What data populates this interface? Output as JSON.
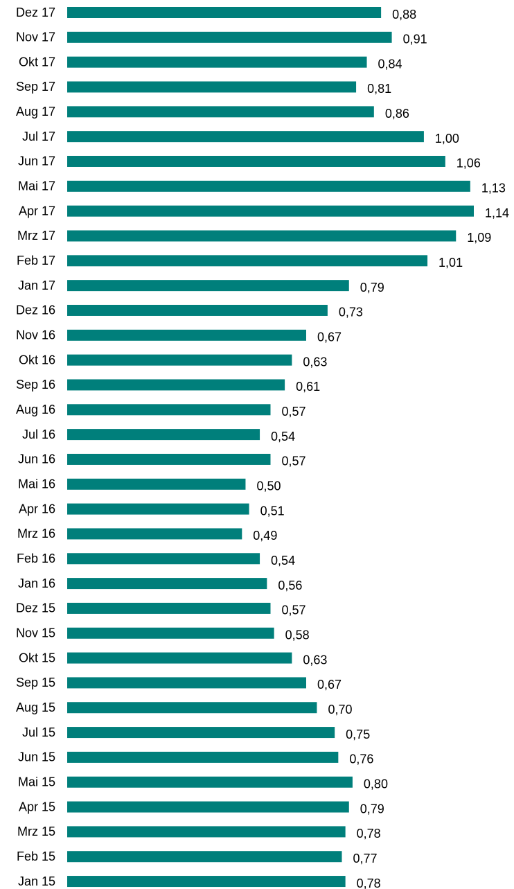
{
  "chart_data": {
    "type": "barh",
    "categories": [
      "Dez 17",
      "Nov 17",
      "Okt 17",
      "Sep 17",
      "Aug 17",
      "Jul 17",
      "Jun 17",
      "Mai 17",
      "Apr 17",
      "Mrz 17",
      "Feb 17",
      "Jan 17",
      "Dez 16",
      "Nov 16",
      "Okt 16",
      "Sep 16",
      "Aug 16",
      "Jul 16",
      "Jun 16",
      "Mai 16",
      "Apr 16",
      "Mrz 16",
      "Feb 16",
      "Jan 16",
      "Dez 15",
      "Nov 15",
      "Okt 15",
      "Sep 15",
      "Aug 15",
      "Jul 15",
      "Jun 15",
      "Mai 15",
      "Apr 15",
      "Mrz 15",
      "Feb 15",
      "Jan 15"
    ],
    "values": [
      0.88,
      0.91,
      0.84,
      0.81,
      0.86,
      1.0,
      1.06,
      1.13,
      1.14,
      1.09,
      1.01,
      0.79,
      0.73,
      0.67,
      0.63,
      0.61,
      0.57,
      0.54,
      0.57,
      0.5,
      0.51,
      0.49,
      0.54,
      0.56,
      0.57,
      0.58,
      0.63,
      0.67,
      0.7,
      0.75,
      0.76,
      0.8,
      0.79,
      0.78,
      0.77,
      0.78
    ],
    "value_labels": [
      "0,88",
      "0,91",
      "0,84",
      "0,81",
      "0,86",
      "1,00",
      "1,06",
      "1,13",
      "1,14",
      "1,09",
      "1,01",
      "0,79",
      "0,73",
      "0,67",
      "0,63",
      "0,61",
      "0,57",
      "0,54",
      "0,57",
      "0,50",
      "0,51",
      "0,49",
      "0,54",
      "0,56",
      "0,57",
      "0,58",
      "0,63",
      "0,67",
      "0,70",
      "0,75",
      "0,76",
      "0,80",
      "0,79",
      "0,78",
      "0,77",
      "0,78"
    ],
    "color": "#007f7b"
  }
}
